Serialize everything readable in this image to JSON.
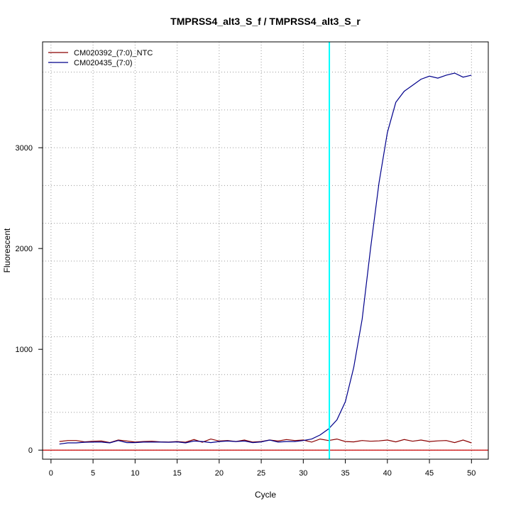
{
  "chart_data": {
    "type": "line",
    "title": "TMPRSS4_alt3_S_f / TMPRSS4_alt3_S_r",
    "xlabel": "Cycle",
    "ylabel": "Fluorescent",
    "xlim": [
      -1,
      52
    ],
    "ylim": [
      -90,
      4050
    ],
    "x_ticks": [
      0,
      5,
      10,
      15,
      20,
      25,
      30,
      35,
      40,
      45,
      50
    ],
    "y_ticks": [
      0,
      1000,
      2000,
      3000
    ],
    "grid": "dotted",
    "legend_position": "top-left",
    "threshold_cycle": 33.1,
    "baseline": 0,
    "x": [
      1,
      2,
      3,
      4,
      5,
      6,
      7,
      8,
      9,
      10,
      11,
      12,
      13,
      14,
      15,
      16,
      17,
      18,
      19,
      20,
      21,
      22,
      23,
      24,
      25,
      26,
      27,
      28,
      29,
      30,
      31,
      32,
      33,
      34,
      35,
      36,
      37,
      38,
      39,
      40,
      41,
      42,
      43,
      44,
      45,
      46,
      47,
      48,
      49,
      50
    ],
    "series": [
      {
        "name": "CM020392_(7:0)_NTC",
        "color": "#8b0000",
        "values": [
          85,
          95,
          95,
          82,
          88,
          90,
          75,
          100,
          90,
          80,
          85,
          88,
          82,
          80,
          85,
          78,
          105,
          78,
          110,
          90,
          95,
          85,
          100,
          80,
          85,
          100,
          90,
          105,
          95,
          100,
          80,
          110,
          95,
          110,
          85,
          82,
          95,
          88,
          92,
          100,
          82,
          105,
          88,
          100,
          85,
          92,
          95,
          75,
          100,
          72
        ]
      },
      {
        "name": "CM020435_(7:0)",
        "color": "#00008b",
        "values": [
          60,
          72,
          72,
          78,
          80,
          80,
          72,
          95,
          75,
          75,
          80,
          80,
          80,
          78,
          82,
          72,
          90,
          85,
          75,
          85,
          90,
          85,
          90,
          75,
          82,
          100,
          80,
          85,
          85,
          95,
          110,
          150,
          210,
          300,
          480,
          820,
          1300,
          2000,
          2650,
          3150,
          3450,
          3560,
          3620,
          3680,
          3710,
          3690,
          3720,
          3740,
          3700,
          3720
        ]
      }
    ]
  },
  "colors": {
    "threshold": "#00ffff",
    "baseline": "#cc0000",
    "grid": "#9a9a9a"
  }
}
